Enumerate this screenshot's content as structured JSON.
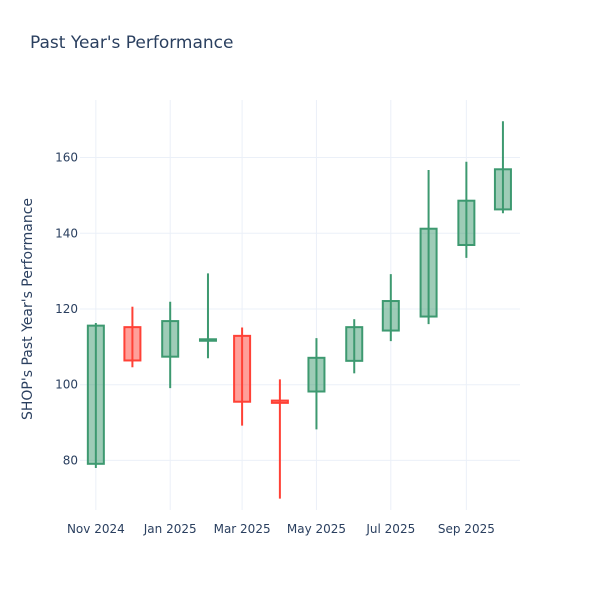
{
  "chart_data": {
    "type": "candlestick",
    "title": "Past Year's Performance",
    "xlabel": "",
    "ylabel": "SHOP's Past Year's Performance",
    "ylim": [
      66.9,
      175.2
    ],
    "yticks": [
      80,
      100,
      120,
      140,
      160
    ],
    "xticks": [
      {
        "date": "2024-11-01",
        "label": "Nov 2024"
      },
      {
        "date": "2025-01-01",
        "label": "Jan 2025"
      },
      {
        "date": "2025-03-01",
        "label": "Mar 2025"
      },
      {
        "date": "2025-05-01",
        "label": "May 2025"
      },
      {
        "date": "2025-07-01",
        "label": "Jul 2025"
      },
      {
        "date": "2025-09-01",
        "label": "Sep 2025"
      }
    ],
    "xlim": [
      "2024-10-19",
      "2025-10-15"
    ],
    "grid": true,
    "increasing_color": "#3d9970",
    "decreasing_color": "#ff4136",
    "candles": [
      {
        "date": "2024-11-01",
        "open": 79.1,
        "high": 116.3,
        "low": 78.0,
        "close": 115.6
      },
      {
        "date": "2024-12-01",
        "open": 115.2,
        "high": 120.6,
        "low": 104.6,
        "close": 106.4
      },
      {
        "date": "2025-01-01",
        "open": 107.4,
        "high": 121.9,
        "low": 99.1,
        "close": 116.8
      },
      {
        "date": "2025-02-01",
        "open": 111.8,
        "high": 129.4,
        "low": 107.0,
        "close": 112.0
      },
      {
        "date": "2025-03-01",
        "open": 112.9,
        "high": 115.1,
        "low": 89.2,
        "close": 95.5
      },
      {
        "date": "2025-04-01",
        "open": 95.8,
        "high": 101.4,
        "low": 69.9,
        "close": 95.2
      },
      {
        "date": "2025-05-01",
        "open": 98.2,
        "high": 112.3,
        "low": 88.2,
        "close": 107.1
      },
      {
        "date": "2025-06-01",
        "open": 106.3,
        "high": 117.3,
        "low": 103.0,
        "close": 115.2
      },
      {
        "date": "2025-07-01",
        "open": 114.3,
        "high": 129.2,
        "low": 111.5,
        "close": 122.1
      },
      {
        "date": "2025-08-01",
        "open": 118.0,
        "high": 156.7,
        "low": 116.0,
        "close": 141.2
      },
      {
        "date": "2025-09-01",
        "open": 136.9,
        "high": 158.9,
        "low": 133.5,
        "close": 148.6
      },
      {
        "date": "2025-10-01",
        "open": 146.3,
        "high": 169.6,
        "low": 145.3,
        "close": 156.9
      }
    ]
  }
}
